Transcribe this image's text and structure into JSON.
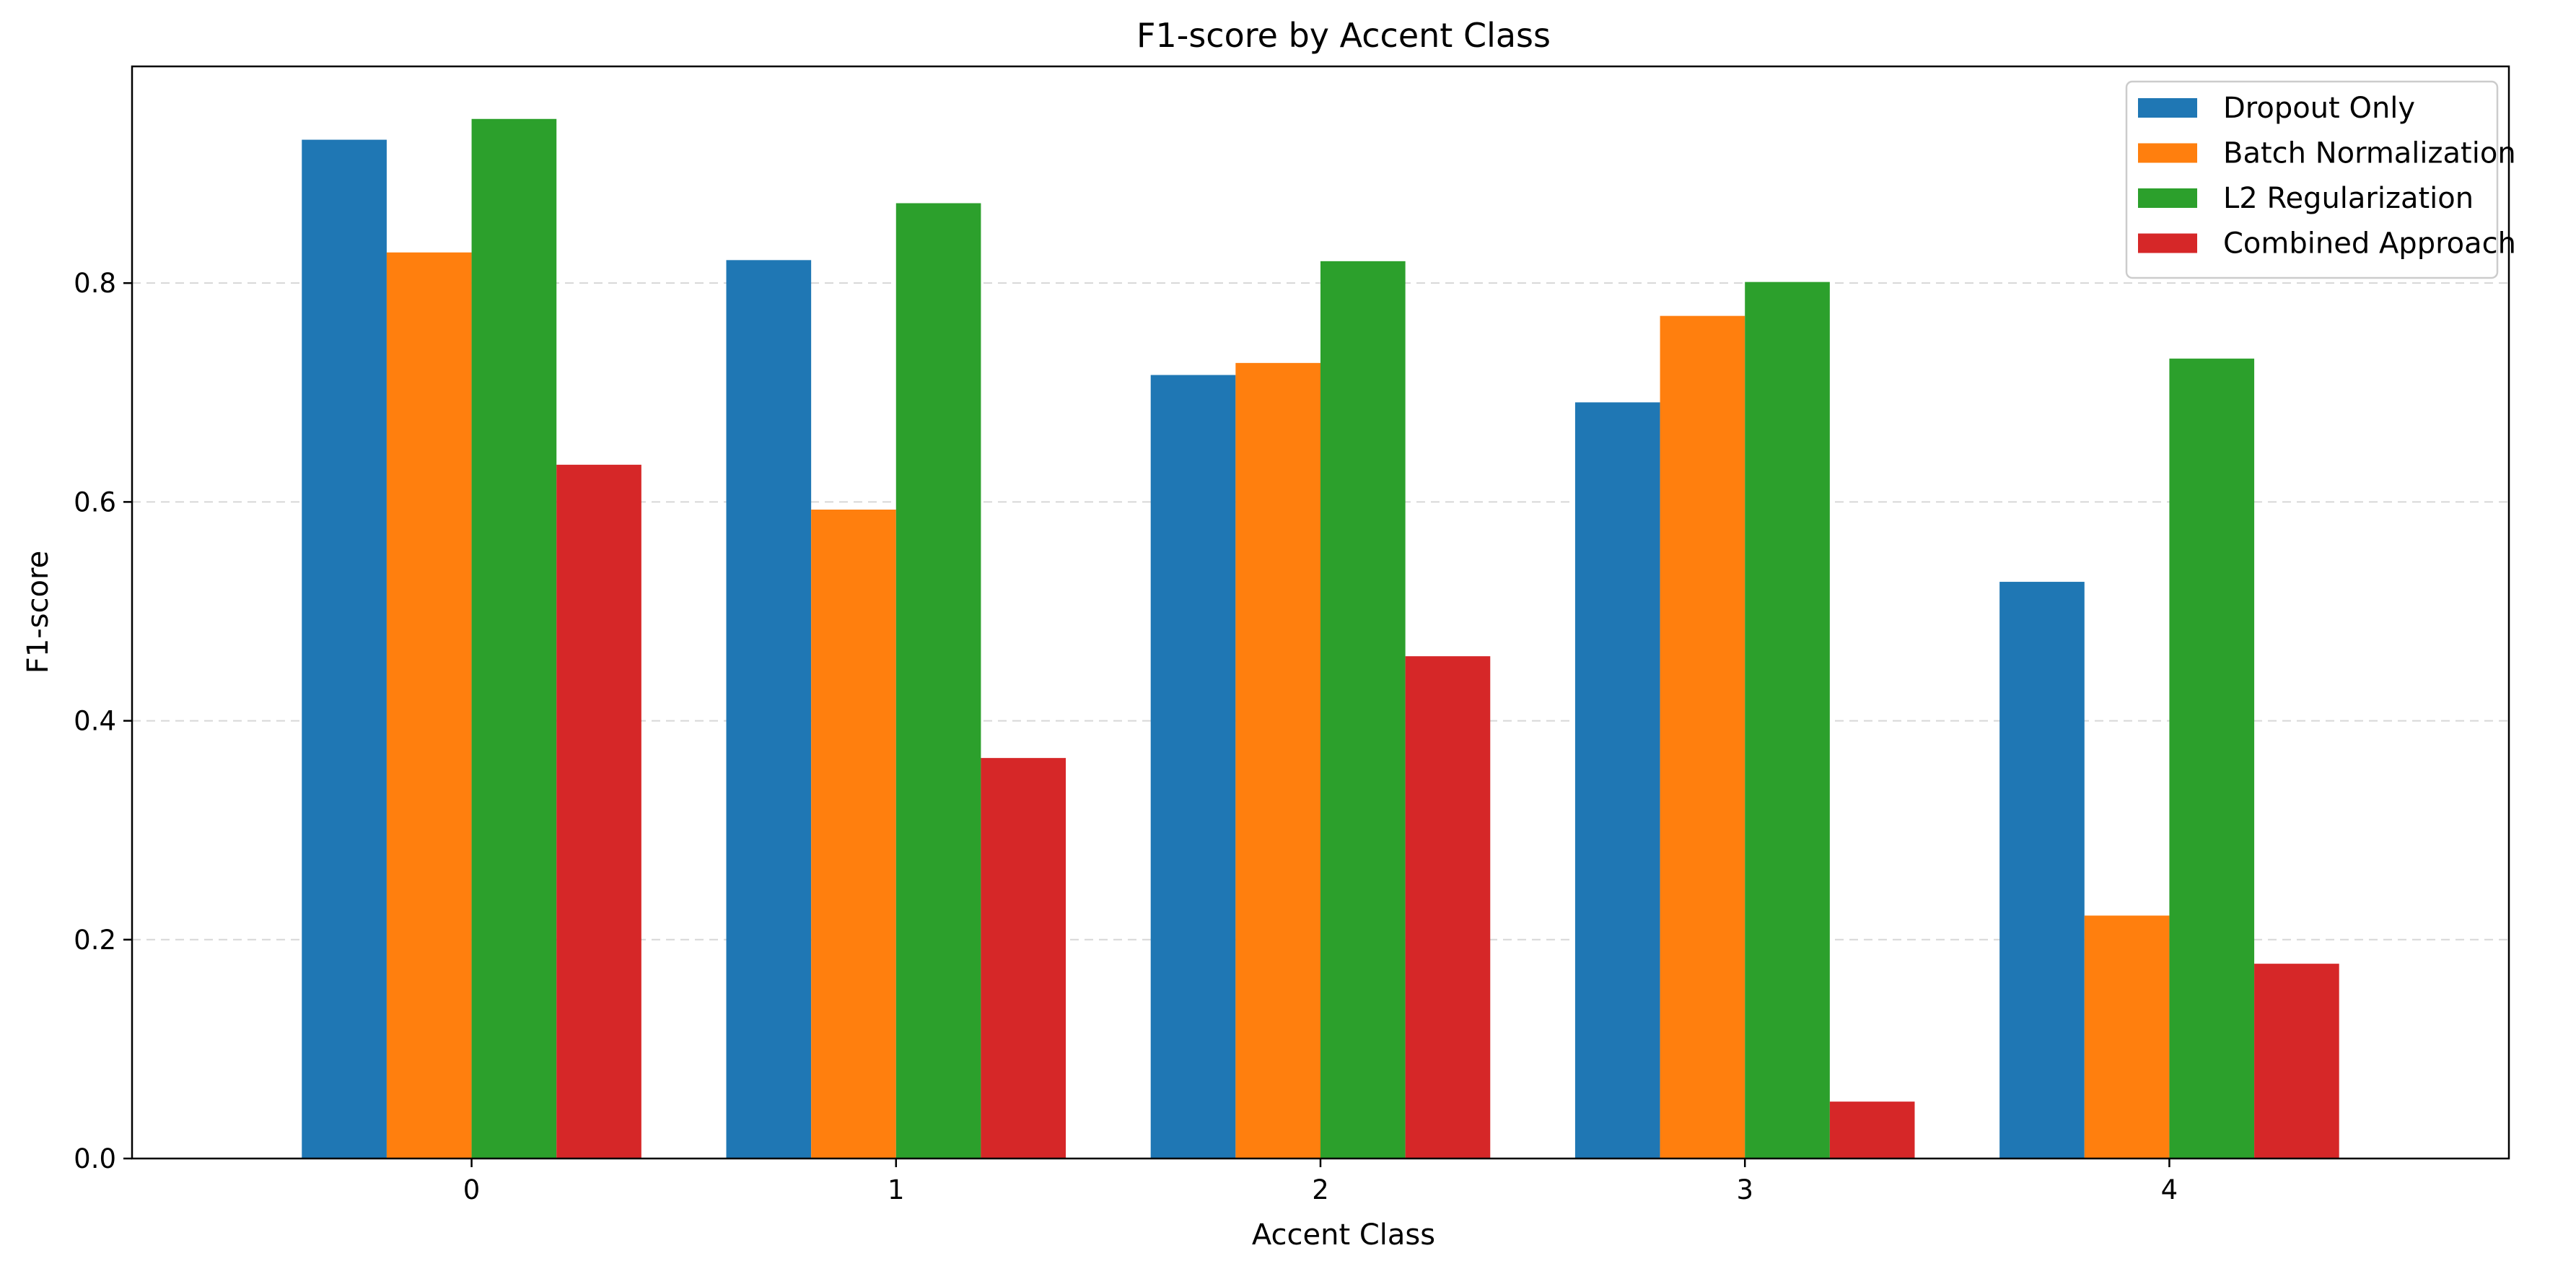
{
  "chart_data": {
    "type": "bar",
    "title": "F1-score by Accent Class",
    "xlabel": "Accent Class",
    "ylabel": "F1-score",
    "categories": [
      "0",
      "1",
      "2",
      "3",
      "4"
    ],
    "series": [
      {
        "name": "Dropout Only",
        "color": "#1f77b4",
        "values": [
          0.931,
          0.821,
          0.716,
          0.691,
          0.527
        ]
      },
      {
        "name": "Batch Normalization",
        "color": "#ff7f0e",
        "values": [
          0.828,
          0.593,
          0.727,
          0.77,
          0.222
        ]
      },
      {
        "name": "L2 Regularization",
        "color": "#2ca02c",
        "values": [
          0.95,
          0.873,
          0.82,
          0.801,
          0.731
        ]
      },
      {
        "name": "Combined Approach",
        "color": "#d62728",
        "values": [
          0.634,
          0.366,
          0.459,
          0.052,
          0.178
        ]
      }
    ],
    "ylim": [
      0,
      0.998
    ],
    "yticks": [
      0.0,
      0.2,
      0.4,
      0.6,
      0.8
    ],
    "ytick_labels": [
      "0.0",
      "0.2",
      "0.4",
      "0.6",
      "0.8"
    ],
    "grid": {
      "y": true,
      "style": "dashed"
    },
    "legend": {
      "position": "top-right"
    }
  }
}
